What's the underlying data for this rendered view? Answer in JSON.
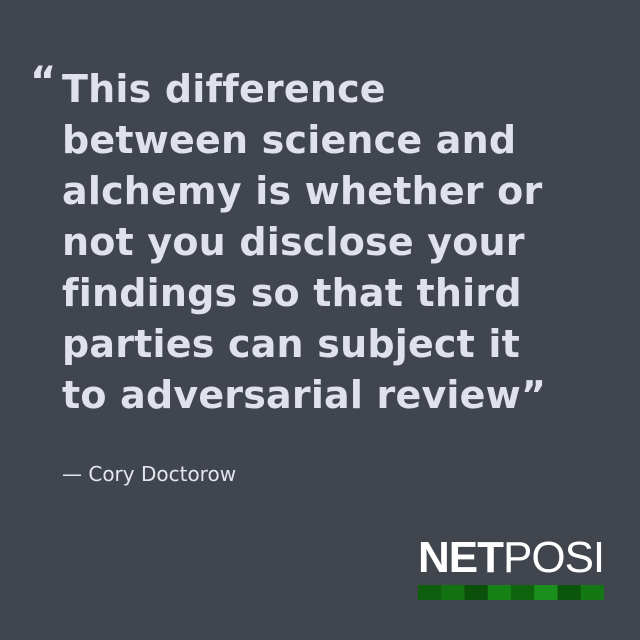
{
  "quote": {
    "open_mark": "“",
    "lines": [
      "This difference",
      "between science and",
      "alchemy is whether or",
      "not you disclose your",
      "findings so that third",
      "parties can subject it",
      "to adversarial review”"
    ]
  },
  "attribution": "— Cory Doctorow",
  "logo": {
    "part_bold": "NET",
    "part_light": "POSI",
    "bar_colors": [
      "#0d5e0d",
      "#127212",
      "#0a4f0a",
      "#168216",
      "#0e650e",
      "#1b8f1b",
      "#0b560b",
      "#137813"
    ]
  },
  "colors": {
    "background": "#41464e",
    "text": "#dfe2ec",
    "logo_text": "#ffffff"
  }
}
